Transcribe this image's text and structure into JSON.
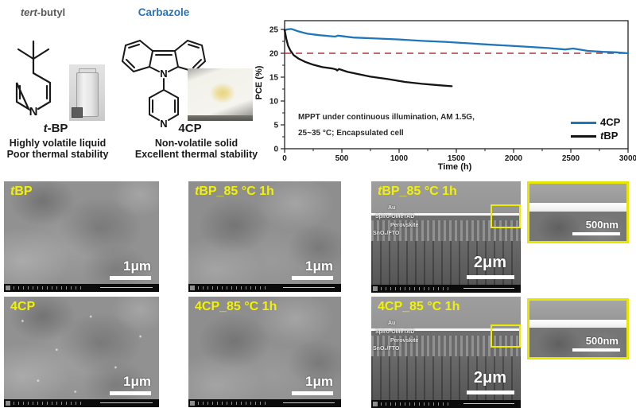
{
  "molecule_panel": {
    "tbp": {
      "title_italic": "tert",
      "title_rest": "-butyl",
      "title_color": "#595959",
      "name_italic": "t",
      "name_rest": "-BP",
      "desc1": "Highly volatile liquid",
      "desc2": "Poor thermal stability",
      "atom_n": "N"
    },
    "fourcp": {
      "title": "Carbazole",
      "title_color": "#2874b8",
      "name": "4CP",
      "desc1": "Non-volatile solid",
      "desc2": "Excellent thermal stability",
      "atom_n_carbazole": "N",
      "atom_n_pyridine": "N"
    }
  },
  "chart_data": {
    "type": "line",
    "title": "",
    "xlabel": "Time (h)",
    "ylabel": "PCE (%)",
    "xlim": [
      0,
      3000
    ],
    "ylim": [
      0,
      27
    ],
    "x_ticks": [
      0,
      500,
      1000,
      1500,
      2000,
      2500,
      3000
    ],
    "y_ticks": [
      0,
      5,
      10,
      15,
      20,
      25
    ],
    "grid": false,
    "legend_position": "lower right",
    "annotation_line1": "MPPT under continuous illumination, AM 1.5G,",
    "annotation_line2": "25~35 °C; Encapsulated cell",
    "reference_line": {
      "y": 20,
      "style": "dashed",
      "color": "#aa3939"
    },
    "legend": [
      {
        "prefix_italic": "",
        "label": "4CP",
        "color": "#1f76b8"
      },
      {
        "prefix_italic": "t",
        "label": "BP",
        "color": "#141414"
      }
    ],
    "series": [
      {
        "name": "4CP",
        "color": "#1f76b8",
        "points": [
          [
            0,
            24.8
          ],
          [
            20,
            25.0
          ],
          [
            60,
            25.1
          ],
          [
            120,
            24.6
          ],
          [
            200,
            24.1
          ],
          [
            300,
            23.8
          ],
          [
            440,
            23.5
          ],
          [
            465,
            23.7
          ],
          [
            600,
            23.3
          ],
          [
            800,
            23.1
          ],
          [
            1000,
            22.9
          ],
          [
            1200,
            22.6
          ],
          [
            1400,
            22.4
          ],
          [
            1600,
            22.1
          ],
          [
            1800,
            21.8
          ],
          [
            1950,
            21.6
          ],
          [
            2100,
            21.4
          ],
          [
            2300,
            21.1
          ],
          [
            2450,
            20.8
          ],
          [
            2520,
            21.0
          ],
          [
            2650,
            20.5
          ],
          [
            2780,
            20.3
          ],
          [
            2900,
            20.2
          ],
          [
            3000,
            20.0
          ]
        ]
      },
      {
        "name": "tBP",
        "color": "#141414",
        "points": [
          [
            0,
            24.9
          ],
          [
            15,
            23.0
          ],
          [
            30,
            21.6
          ],
          [
            50,
            20.6
          ],
          [
            80,
            19.6
          ],
          [
            120,
            18.9
          ],
          [
            180,
            18.2
          ],
          [
            250,
            17.6
          ],
          [
            330,
            17.1
          ],
          [
            420,
            16.8
          ],
          [
            450,
            16.6
          ],
          [
            460,
            16.4
          ],
          [
            475,
            16.7
          ],
          [
            550,
            16.1
          ],
          [
            650,
            15.6
          ],
          [
            750,
            15.1
          ],
          [
            900,
            14.6
          ],
          [
            1050,
            14.0
          ],
          [
            1200,
            13.6
          ],
          [
            1350,
            13.3
          ],
          [
            1460,
            13.1
          ]
        ]
      }
    ]
  },
  "sem": {
    "label_color": "#f2f200",
    "surface_panels": [
      {
        "label_italic": "t",
        "label_rest": "BP",
        "scale_bar": "1μm"
      },
      {
        "label_italic": "t",
        "label_rest": "BP_85 °C 1h",
        "scale_bar": "1μm"
      },
      {
        "label_italic": "",
        "label_rest": "4CP",
        "scale_bar": "1μm"
      },
      {
        "label_italic": "",
        "label_rest": "4CP_85 °C 1h",
        "scale_bar": "1μm"
      }
    ],
    "cross_panels": [
      {
        "label_italic": "t",
        "label_rest": "BP_85 °C 1h",
        "scale_bar": "2μm",
        "layers": [
          "Au",
          "Spiro-OMeTAD",
          "Perovskite",
          "SnO₂/FTO"
        ]
      },
      {
        "label_italic": "",
        "label_rest": "4CP_85 °C 1h",
        "scale_bar": "2μm",
        "layers": [
          "Au",
          "Spiro-OMeTAD",
          "Perovskite",
          "SnO₂/FTO"
        ]
      }
    ],
    "insets": [
      {
        "scale_bar": "500nm"
      },
      {
        "scale_bar": "500nm"
      }
    ]
  }
}
